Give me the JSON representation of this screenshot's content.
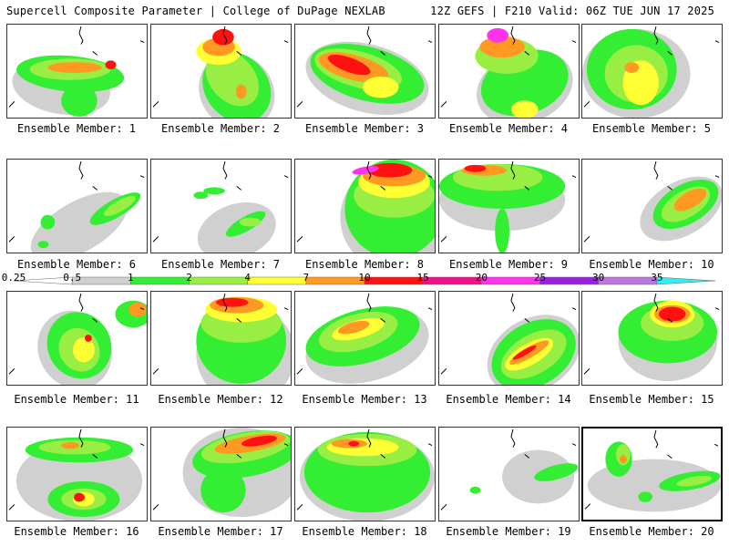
{
  "header": {
    "title_left": "Supercell Composite Parameter | College of DuPage NEXLAB",
    "title_right": "12Z GEFS | F210 Valid: 06Z TUE JUN 17 2025"
  },
  "panels": [
    {
      "label": "Ensemble Member: 1"
    },
    {
      "label": "Ensemble Member: 2"
    },
    {
      "label": "Ensemble Member: 3"
    },
    {
      "label": "Ensemble Member: 4"
    },
    {
      "label": "Ensemble Member: 5"
    },
    {
      "label": "Ensemble Member: 6"
    },
    {
      "label": "Ensemble Member: 7"
    },
    {
      "label": "Ensemble Member: 8"
    },
    {
      "label": "Ensemble Member: 9"
    },
    {
      "label": "Ensemble Member: 10"
    },
    {
      "label": "Ensemble Member: 11"
    },
    {
      "label": "Ensemble Member: 12"
    },
    {
      "label": "Ensemble Member: 13"
    },
    {
      "label": "Ensemble Member: 14"
    },
    {
      "label": "Ensemble Member: 15"
    },
    {
      "label": "Ensemble Member: 16"
    },
    {
      "label": "Ensemble Member: 17"
    },
    {
      "label": "Ensemble Member: 18"
    },
    {
      "label": "Ensemble Member: 19"
    },
    {
      "label": "Ensemble Member: 20"
    }
  ],
  "colorbar": {
    "ticks": [
      "0.25",
      "0.5",
      "1",
      "2",
      "4",
      "7",
      "10",
      "15",
      "20",
      "25",
      "30",
      "35"
    ],
    "colors": [
      "#ffffff",
      "#d0d0d0",
      "#33ee33",
      "#99ee44",
      "#ffff33",
      "#ff9922",
      "#ff1111",
      "#ee1188",
      "#ff33ee",
      "#9922dd",
      "#bb77dd",
      "#33eeee"
    ]
  },
  "selected_panel": "Ensemble Member: 20"
}
